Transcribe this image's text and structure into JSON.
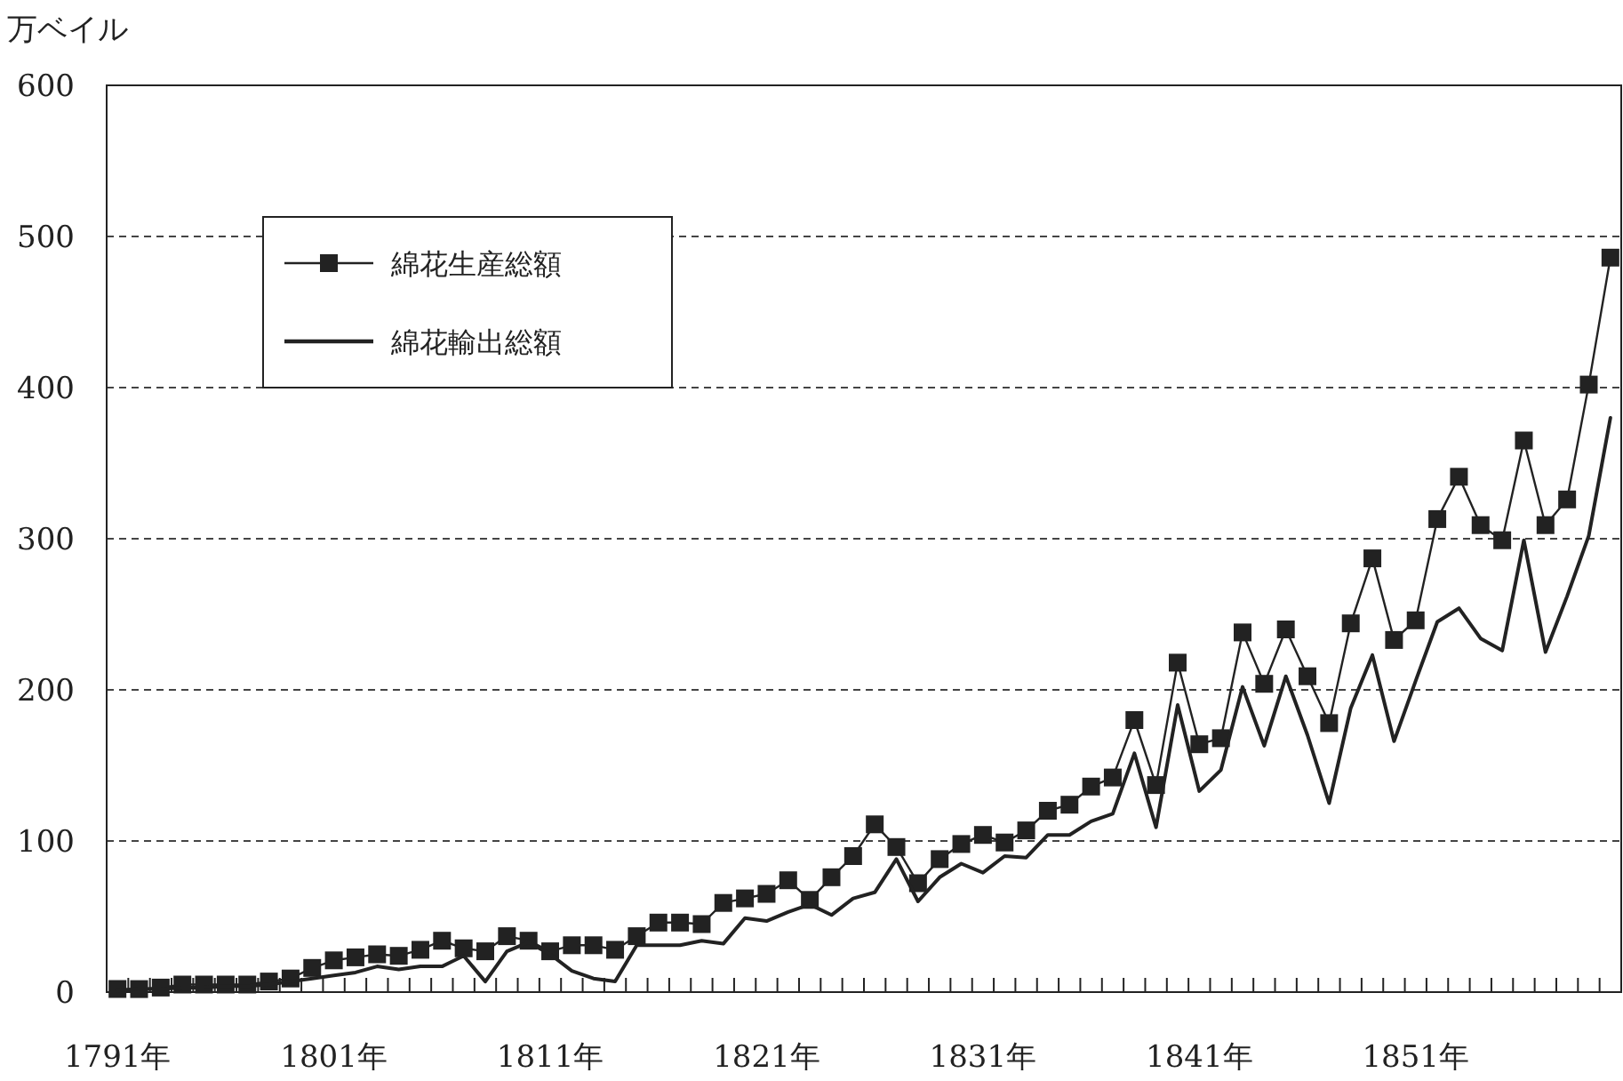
{
  "chart_data": {
    "type": "line",
    "ylabel": "万ベイル",
    "categories": [
      "1791年",
      null,
      null,
      null,
      null,
      null,
      null,
      null,
      null,
      null,
      "1801年",
      null,
      null,
      null,
      null,
      null,
      null,
      null,
      null,
      null,
      "1811年",
      null,
      null,
      null,
      null,
      null,
      null,
      null,
      null,
      null,
      "1821年",
      null,
      null,
      null,
      null,
      null,
      null,
      null,
      null,
      null,
      "1831年",
      null,
      null,
      null,
      null,
      null,
      null,
      null,
      null,
      null,
      "1841年",
      null,
      null,
      null,
      null,
      null,
      null,
      null,
      null,
      null,
      "1851年",
      null,
      null,
      null,
      null,
      null,
      null,
      null,
      null,
      null
    ],
    "series": [
      {
        "name": "綿花生産総額",
        "color": "#222222",
        "marker": "square",
        "line_style": "solid",
        "values": [
          2,
          2,
          3,
          5,
          5,
          5,
          5,
          7,
          9,
          16,
          21,
          23,
          25,
          24,
          28,
          34,
          29,
          27,
          37,
          34,
          27,
          31,
          31,
          28,
          37,
          46,
          46,
          45,
          59,
          62,
          65,
          74,
          61,
          76,
          90,
          111,
          96,
          72,
          88,
          98,
          104,
          99,
          107,
          120,
          124,
          136,
          142,
          180,
          137,
          218,
          164,
          168,
          238,
          204,
          240,
          209,
          178,
          244,
          287,
          233,
          246,
          313,
          341,
          309,
          299,
          365,
          309,
          326,
          402,
          486
        ]
      },
      {
        "name": "綿花輸出総額",
        "color": "#222222",
        "marker": "none",
        "line_style": "solid",
        "values": [
          1,
          2,
          2,
          3,
          3,
          4,
          4,
          5,
          7,
          9,
          11,
          13,
          17,
          15,
          17,
          17,
          24,
          7,
          27,
          33,
          25,
          14,
          9,
          7,
          31,
          31,
          31,
          34,
          32,
          49,
          47,
          53,
          58,
          51,
          62,
          66,
          88,
          60,
          76,
          85,
          79,
          90,
          89,
          104,
          104,
          113,
          118,
          158,
          109,
          190,
          133,
          147,
          202,
          163,
          209,
          170,
          125,
          188,
          223,
          166,
          206,
          245,
          254,
          234,
          226,
          299,
          225,
          262,
          302,
          380
        ]
      }
    ],
    "ylim": [
      0,
      600
    ],
    "yticks": [
      0,
      100,
      200,
      300,
      400,
      500,
      600
    ],
    "grid": "y",
    "legend": "top left"
  }
}
